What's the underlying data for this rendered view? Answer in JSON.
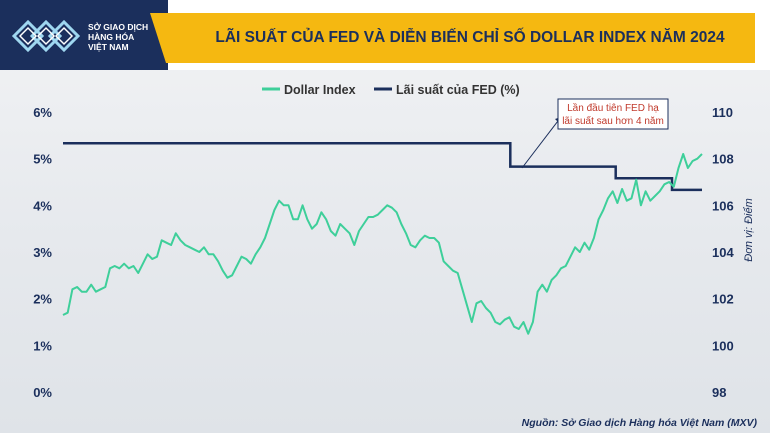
{
  "logo": {
    "line1": "SỞ GIAO DỊCH",
    "line2": "HÀNG HÓA",
    "line3": "VIỆT NAM"
  },
  "title": "LÃI SUẤT CỦA FED VÀ DIỄN BIẾN CHỈ SỐ DOLLAR INDEX NĂM 2024",
  "legend": {
    "dxy": "Dollar Index",
    "fed": "Lãi suất của FED (%)"
  },
  "annotation": {
    "line1": "Lần đầu tiên FED hạ",
    "line2": "lãi suất sau hơn 4 năm"
  },
  "unit_label": "Đơn vị: Điểm",
  "source": "Nguồn: Sở Giao dịch Hàng hóa Việt Nam (MXV)",
  "colors": {
    "dxy": "#3ecf9a",
    "fed": "#1b2f5c",
    "title_band": "#f5b811",
    "logo_bg": "#1b2f5c"
  },
  "chart_data": {
    "type": "line",
    "left_axis": {
      "ticks": [
        "0%",
        "1%",
        "2%",
        "3%",
        "4%",
        "5%",
        "6%"
      ],
      "range": [
        0,
        6
      ]
    },
    "right_axis": {
      "ticks": [
        "98",
        "100",
        "102",
        "104",
        "106",
        "108",
        "110"
      ],
      "range": [
        98,
        110
      ]
    },
    "series": [
      {
        "name": "Dollar Index",
        "axis": "right",
        "values": [
          101.3,
          101.4,
          102.4,
          102.5,
          102.3,
          102.3,
          102.6,
          102.3,
          102.4,
          102.5,
          103.3,
          103.4,
          103.3,
          103.5,
          103.3,
          103.4,
          103.1,
          103.5,
          103.9,
          103.7,
          103.8,
          104.5,
          104.4,
          104.3,
          104.8,
          104.5,
          104.3,
          104.2,
          104.1,
          104.0,
          104.2,
          103.9,
          103.9,
          103.6,
          103.2,
          102.9,
          103.0,
          103.4,
          103.8,
          103.7,
          103.5,
          103.9,
          104.2,
          104.6,
          105.2,
          105.8,
          106.2,
          106.0,
          106.0,
          105.4,
          105.4,
          106.0,
          105.4,
          105.0,
          105.2,
          105.7,
          105.4,
          104.9,
          104.7,
          105.2,
          105.0,
          104.8,
          104.3,
          104.9,
          105.2,
          105.5,
          105.5,
          105.6,
          105.8,
          106.0,
          105.9,
          105.7,
          105.2,
          104.8,
          104.3,
          104.2,
          104.5,
          104.7,
          104.6,
          104.6,
          104.4,
          103.6,
          103.4,
          103.2,
          103.1,
          102.4,
          101.7,
          101.0,
          101.8,
          101.9,
          101.6,
          101.4,
          101.0,
          100.9,
          101.1,
          101.2,
          100.8,
          100.7,
          101.0,
          100.5,
          101.0,
          102.3,
          102.6,
          102.3,
          102.8,
          103.0,
          103.3,
          103.4,
          103.8,
          104.2,
          104.0,
          104.4,
          104.1,
          104.6,
          105.4,
          105.8,
          106.3,
          106.6,
          106.1,
          106.7,
          106.2,
          106.3,
          107.1,
          106.0,
          106.6,
          106.2,
          106.4,
          106.6,
          106.9,
          107.0,
          106.8,
          107.6,
          108.2,
          107.6,
          107.9,
          108.0,
          108.2
        ]
      },
      {
        "name": "Lãi suất của FED (%)",
        "axis": "left",
        "points": [
          {
            "t": 0,
            "v": 5.33
          },
          {
            "t": 0.7,
            "v": 5.33
          },
          {
            "t": 0.7,
            "v": 4.83
          },
          {
            "t": 0.865,
            "v": 4.83
          },
          {
            "t": 0.865,
            "v": 4.58
          },
          {
            "t": 0.953,
            "v": 4.58
          },
          {
            "t": 0.953,
            "v": 4.33
          },
          {
            "t": 1,
            "v": 4.33
          }
        ]
      }
    ]
  }
}
